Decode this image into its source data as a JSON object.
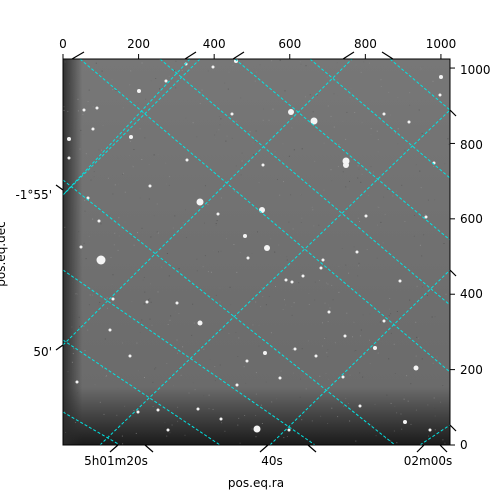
{
  "chart_data": {
    "type": "image",
    "x_pixel_axis": {
      "range": [
        0,
        1024
      ],
      "ticks": [
        0,
        200,
        400,
        600,
        800,
        1000
      ],
      "tick_labels": [
        "0",
        "200",
        "400",
        "600",
        "800",
        "1000"
      ]
    },
    "y_pixel_axis": {
      "range": [
        0,
        1024
      ],
      "ticks": [
        0,
        200,
        400,
        600,
        800,
        1000
      ],
      "tick_labels": [
        "0",
        "200",
        "400",
        "600",
        "800",
        "1000"
      ]
    },
    "ra_axis": {
      "label": "pos.eq.ra",
      "tick_labels": [
        "5h01m20s",
        "40s",
        "02m00s"
      ]
    },
    "dec_axis": {
      "label": "pos.eq.dec",
      "tick_labels": [
        "-1°55'",
        "50'"
      ]
    },
    "grid_color": "#00e5e5",
    "background": "grayscale star field",
    "grid": true
  }
}
